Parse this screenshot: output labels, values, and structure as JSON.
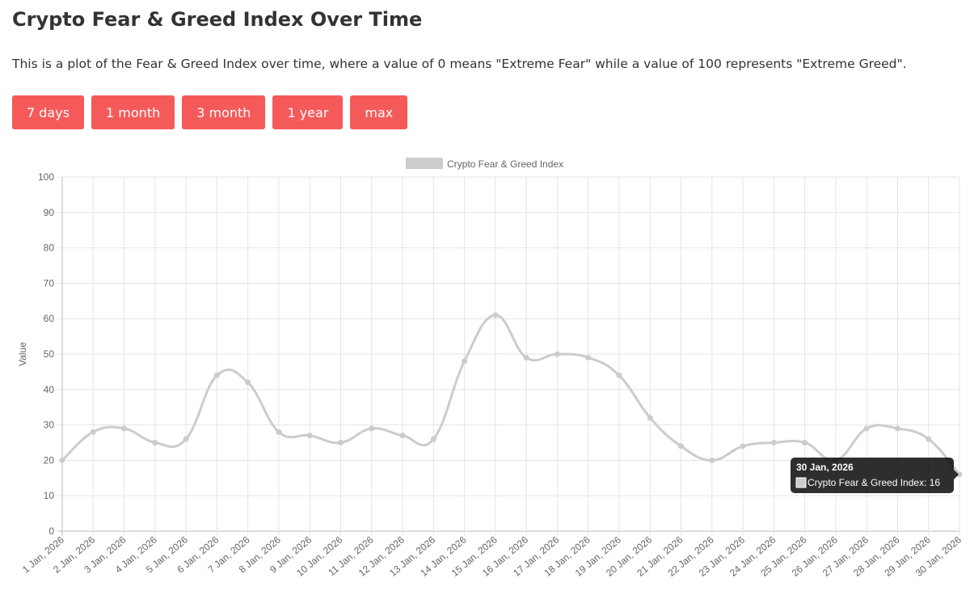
{
  "page": {
    "title": "Crypto Fear & Greed Index Over Time",
    "description": "This is a plot of the Fear & Greed Index over time, where a value of 0 means \"Extreme Fear\" while a value of 100 represents \"Extreme Greed\".",
    "buttons": [
      "7 days",
      "1 month",
      "3 month",
      "1 year",
      "max"
    ]
  },
  "tooltip": {
    "title": "30 Jan, 2026",
    "label": "Crypto Fear & Greed Index: 16"
  },
  "chart_data": {
    "type": "line",
    "title": "",
    "xlabel": "",
    "ylabel": "Value",
    "ylim": [
      0,
      100
    ],
    "grid": true,
    "legend": "top-center",
    "series_color": "#cccccc",
    "yticks": [
      0,
      10,
      20,
      30,
      40,
      50,
      60,
      70,
      80,
      90,
      100
    ],
    "x": [
      "1 Jan, 2026",
      "2 Jan, 2026",
      "3 Jan, 2026",
      "4 Jan, 2026",
      "5 Jan, 2026",
      "6 Jan, 2026",
      "7 Jan, 2026",
      "8 Jan, 2026",
      "9 Jan, 2026",
      "10 Jan, 2026",
      "11 Jan, 2026",
      "12 Jan, 2026",
      "13 Jan, 2026",
      "14 Jan, 2026",
      "15 Jan, 2026",
      "16 Jan, 2026",
      "17 Jan, 2026",
      "18 Jan, 2026",
      "19 Jan, 2026",
      "20 Jan, 2026",
      "21 Jan, 2026",
      "22 Jan, 2026",
      "23 Jan, 2026",
      "24 Jan, 2026",
      "25 Jan, 2026",
      "26 Jan, 2026",
      "27 Jan, 2026",
      "28 Jan, 2026",
      "29 Jan, 2026",
      "30 Jan, 2026"
    ],
    "series": [
      {
        "name": "Crypto Fear & Greed Index",
        "values": [
          20,
          28,
          29,
          25,
          26,
          44,
          42,
          28,
          27,
          25,
          29,
          27,
          26,
          48,
          61,
          49,
          50,
          49,
          44,
          32,
          24,
          20,
          24,
          25,
          25,
          20,
          29,
          29,
          26,
          16
        ]
      }
    ]
  }
}
